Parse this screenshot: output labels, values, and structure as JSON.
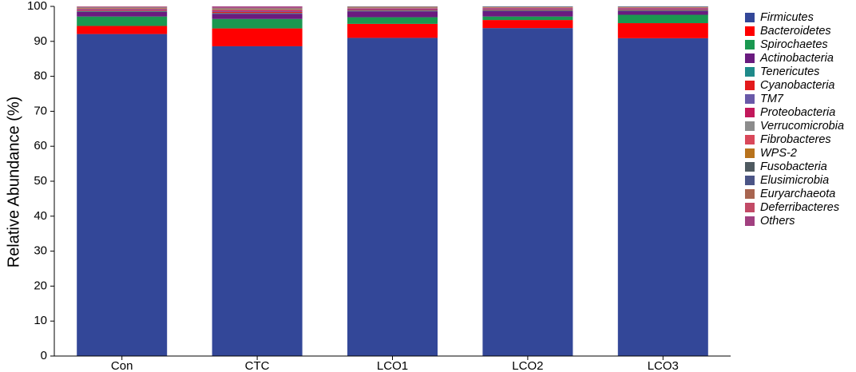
{
  "chart_data": {
    "type": "bar",
    "stacked": true,
    "title": "",
    "xlabel": "",
    "ylabel": "Relative Abundance (%)",
    "ylim": [
      0,
      100
    ],
    "yticks": [
      0,
      10,
      20,
      30,
      40,
      50,
      60,
      70,
      80,
      90,
      100
    ],
    "grid": false,
    "legend_position": "right",
    "categories": [
      "Con",
      "CTC",
      "LCO1",
      "LCO2",
      "LCO3"
    ],
    "series": [
      {
        "name": "Firmicutes",
        "color": "#334798",
        "values": [
          92.1,
          88.6,
          91.0,
          93.8,
          90.9
        ]
      },
      {
        "name": "Bacteroidetes",
        "color": "#ff0000",
        "values": [
          2.3,
          5.1,
          4.0,
          2.3,
          4.3
        ]
      },
      {
        "name": "Spirochaetes",
        "color": "#1a9850",
        "values": [
          2.7,
          2.7,
          1.9,
          1.0,
          2.4
        ]
      },
      {
        "name": "Actinobacteria",
        "color": "#6a1b7f",
        "values": [
          1.3,
          1.5,
          1.7,
          1.6,
          1.1
        ]
      },
      {
        "name": "Tenericutes",
        "color": "#1f8a8a",
        "values": [
          0.2,
          0.2,
          0.2,
          0.2,
          0.2
        ]
      },
      {
        "name": "Cyanobacteria",
        "color": "#e31a1c",
        "values": [
          0.2,
          0.3,
          0.2,
          0.2,
          0.2
        ]
      },
      {
        "name": "TM7",
        "color": "#6959a8",
        "values": [
          0.2,
          0.2,
          0.2,
          0.2,
          0.2
        ]
      },
      {
        "name": "Proteobacteria",
        "color": "#c2185b",
        "values": [
          0.2,
          0.3,
          0.2,
          0.2,
          0.2
        ]
      },
      {
        "name": "Verrucomicrobia",
        "color": "#8c8c8c",
        "values": [
          0.1,
          0.1,
          0.1,
          0.1,
          0.1
        ]
      },
      {
        "name": "Fibrobacteres",
        "color": "#d9485a",
        "values": [
          0.1,
          0.1,
          0.1,
          0.1,
          0.1
        ]
      },
      {
        "name": "WPS-2",
        "color": "#b8731d",
        "values": [
          0.1,
          0.1,
          0.1,
          0.1,
          0.1
        ]
      },
      {
        "name": "Fusobacteria",
        "color": "#4f5a60",
        "values": [
          0.1,
          0.1,
          0.1,
          0.1,
          0.1
        ]
      },
      {
        "name": "Elusimicrobia",
        "color": "#4b5586",
        "values": [
          0.1,
          0.1,
          0.1,
          0.1,
          0.1
        ]
      },
      {
        "name": "Euryarchaeota",
        "color": "#a86550",
        "values": [
          0.1,
          0.1,
          0.1,
          0.1,
          0.1
        ]
      },
      {
        "name": "Deferribacteres",
        "color": "#c24a66",
        "values": [
          0.1,
          0.1,
          0.1,
          0.1,
          0.1
        ]
      },
      {
        "name": "Others",
        "color": "#a14080",
        "values": [
          0.1,
          0.4,
          0.2,
          0.1,
          0.1
        ]
      }
    ]
  }
}
